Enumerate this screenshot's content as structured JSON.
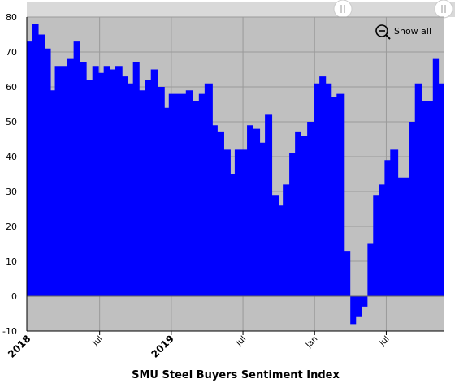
{
  "chart_data": {
    "type": "step-area",
    "title": "SMU Steel Buyers Sentiment Index",
    "button": "Show all",
    "color": "#0000ff",
    "background": "#c0c0c0",
    "x": [
      -0.1,
      0.34,
      0.89,
      1.43,
      1.91,
      2.25,
      3.27,
      3.82,
      4.36,
      4.91,
      5.39,
      5.93,
      6.34,
      6.89,
      7.29,
      7.91,
      8.38,
      8.79,
      9.34,
      9.82,
      10.29,
      10.91,
      11.45,
      11.79,
      13.22,
      13.84,
      14.31,
      14.79,
      15.47,
      15.88,
      16.43,
      16.97,
      17.31,
      18.34,
      18.88,
      19.43,
      19.84,
      20.45,
      21.0,
      21.34,
      21.88,
      22.36,
      22.84,
      23.38,
      23.93,
      24.4,
      24.95,
      25.43,
      25.84,
      26.52,
      26.99,
      27.47,
      27.95,
      28.43,
      28.9,
      29.38,
      29.86,
      30.33,
      31.0,
      31.9,
      32.4,
      33.0,
      33.9,
      34.4
    ],
    "values": [
      73,
      78,
      75,
      71,
      59,
      66,
      68,
      73,
      67,
      62,
      66,
      64,
      66,
      65,
      66,
      63,
      61,
      67,
      59,
      62,
      65,
      60,
      54,
      58,
      59,
      56,
      58,
      61,
      49,
      47,
      42,
      35,
      42,
      49,
      48,
      44,
      52,
      29,
      26,
      32,
      41,
      47,
      46,
      50,
      61,
      63,
      61,
      57,
      58,
      13,
      -8,
      -6,
      -3,
      15,
      29,
      32,
      39,
      42,
      34,
      50,
      61,
      56,
      68,
      61
    ],
    "xlim": [
      -0.1,
      34.8
    ],
    "xticks": [
      {
        "value": 0,
        "label": "2018"
      },
      {
        "value": 6,
        "label": "Jul"
      },
      {
        "value": 12,
        "label": "2019"
      },
      {
        "value": 18,
        "label": "Jul"
      },
      {
        "value": 24,
        "label": "Jan"
      },
      {
        "value": 30,
        "label": "Jul"
      }
    ],
    "ylim": [
      -10,
      80
    ],
    "yticks": [
      -10,
      0,
      10,
      20,
      30,
      40,
      50,
      60,
      70,
      80
    ],
    "grid": true
  }
}
